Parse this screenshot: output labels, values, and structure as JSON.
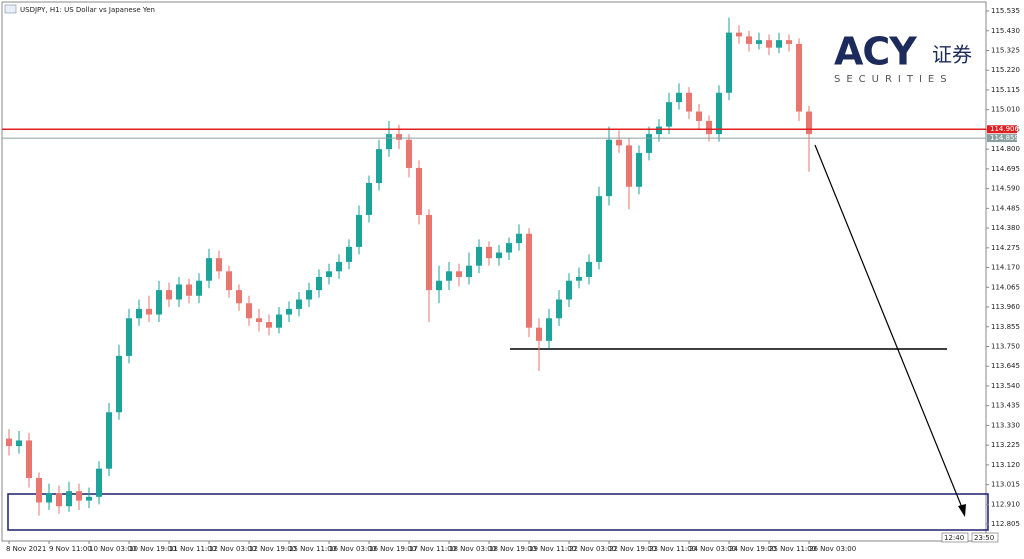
{
  "chart_data": {
    "type": "candlestick",
    "title": "USDJPY, H1: US Dollar vs Japanese Yen",
    "logo": {
      "brand": "ACY",
      "cn": "证券",
      "sub": "SECURITIES"
    },
    "up_color": "#1ba39c",
    "down_color": "#e8766f",
    "categories": [
      "8 Nov 2021",
      null,
      null,
      null,
      "9 Nov 11:00",
      null,
      null,
      null,
      "10 Nov 03:00",
      null,
      null,
      null,
      "10 Nov 19:00",
      null,
      null,
      null,
      "11 Nov 11:00",
      null,
      null,
      null,
      "12 Nov 03:00",
      null,
      null,
      null,
      "12 Nov 19:00",
      null,
      null,
      null,
      "15 Nov 11:00",
      null,
      null,
      null,
      "16 Nov 03:00",
      null,
      null,
      null,
      "16 Nov 19:00",
      null,
      null,
      null,
      "17 Nov 11:00",
      null,
      null,
      null,
      "18 Nov 03:00",
      null,
      null,
      null,
      "18 Nov 19:00",
      null,
      null,
      null,
      "19 Nov 11:00",
      null,
      null,
      null,
      "22 Nov 03:00",
      null,
      null,
      null,
      "22 Nov 19:00",
      null,
      null,
      null,
      "23 Nov 11:00",
      null,
      null,
      null,
      "24 Nov 03:00",
      null,
      null,
      null,
      "24 Nov 19:00",
      null,
      null,
      null,
      "25 Nov 11:00",
      null,
      null,
      null,
      "26 Nov 03:00"
    ],
    "open": [
      113.26,
      113.22,
      113.25,
      113.05,
      112.92,
      112.97,
      112.9,
      112.98,
      112.93,
      112.95,
      113.1,
      113.4,
      113.7,
      113.9,
      113.95,
      113.92,
      114.05,
      114.0,
      114.08,
      114.02,
      114.1,
      114.22,
      114.15,
      114.05,
      113.98,
      113.9,
      113.88,
      113.85,
      113.92,
      113.95,
      114.0,
      114.05,
      114.12,
      114.15,
      114.2,
      114.28,
      114.45,
      114.62,
      114.8,
      114.88,
      114.85,
      114.7,
      114.45,
      114.05,
      114.1,
      114.15,
      114.12,
      114.18,
      114.28,
      114.22,
      114.25,
      114.3,
      114.35,
      113.85,
      113.78,
      113.9,
      114.0,
      114.1,
      114.12,
      114.2,
      114.55,
      114.85,
      114.82,
      114.6,
      114.78,
      114.88,
      114.92,
      115.05,
      115.1,
      115.0,
      114.95,
      114.88,
      115.1,
      115.42,
      115.4,
      115.36,
      115.38,
      115.34,
      115.38,
      115.36,
      115.0
    ],
    "high": [
      113.31,
      113.3,
      113.29,
      113.08,
      113.02,
      113.01,
      113.03,
      113.02,
      113.0,
      113.14,
      113.45,
      113.76,
      113.95,
      114.0,
      114.02,
      114.1,
      114.09,
      114.12,
      114.11,
      114.14,
      114.27,
      114.26,
      114.18,
      114.08,
      114.02,
      113.95,
      113.92,
      113.96,
      113.99,
      114.04,
      114.09,
      114.16,
      114.19,
      114.24,
      114.32,
      114.5,
      114.66,
      114.85,
      114.95,
      114.93,
      114.88,
      114.74,
      114.48,
      114.18,
      114.2,
      114.19,
      114.25,
      114.32,
      114.31,
      114.29,
      114.33,
      114.4,
      114.38,
      113.9,
      113.95,
      114.05,
      114.14,
      114.17,
      114.24,
      114.6,
      114.92,
      114.9,
      114.86,
      114.82,
      114.92,
      114.96,
      115.1,
      115.15,
      115.13,
      115.04,
      114.98,
      115.14,
      115.5,
      115.46,
      115.43,
      115.42,
      115.41,
      115.42,
      115.41,
      115.39,
      115.03
    ],
    "low": [
      113.17,
      113.18,
      113.0,
      112.85,
      112.88,
      112.86,
      112.87,
      112.88,
      112.89,
      112.91,
      113.06,
      113.36,
      113.66,
      113.86,
      113.88,
      113.88,
      113.96,
      113.96,
      113.98,
      113.98,
      114.06,
      114.11,
      114.01,
      113.94,
      113.86,
      113.83,
      113.81,
      113.82,
      113.88,
      113.91,
      113.96,
      114.01,
      114.08,
      114.11,
      114.16,
      114.24,
      114.41,
      114.58,
      114.76,
      114.8,
      114.65,
      114.4,
      113.88,
      113.98,
      114.05,
      114.07,
      114.08,
      114.14,
      114.18,
      114.18,
      114.21,
      114.26,
      113.8,
      113.62,
      113.74,
      113.86,
      113.96,
      114.06,
      114.08,
      114.16,
      114.5,
      114.78,
      114.48,
      114.56,
      114.74,
      114.84,
      114.88,
      115.01,
      114.96,
      114.91,
      114.84,
      114.84,
      115.06,
      115.36,
      115.32,
      115.33,
      115.3,
      115.31,
      115.32,
      114.95,
      114.68
    ],
    "close": [
      113.22,
      113.25,
      113.05,
      112.92,
      112.97,
      112.9,
      112.98,
      112.93,
      112.95,
      113.1,
      113.4,
      113.7,
      113.9,
      113.95,
      113.92,
      114.05,
      114.0,
      114.08,
      114.02,
      114.1,
      114.22,
      114.15,
      114.05,
      113.98,
      113.9,
      113.88,
      113.85,
      113.92,
      113.95,
      114.0,
      114.05,
      114.12,
      114.15,
      114.2,
      114.28,
      114.45,
      114.62,
      114.8,
      114.88,
      114.85,
      114.7,
      114.45,
      114.05,
      114.1,
      114.15,
      114.12,
      114.18,
      114.28,
      114.22,
      114.25,
      114.3,
      114.35,
      113.85,
      113.78,
      113.9,
      114.0,
      114.1,
      114.12,
      114.2,
      114.55,
      114.85,
      114.82,
      114.6,
      114.78,
      114.88,
      114.92,
      115.05,
      115.1,
      115.0,
      114.95,
      114.88,
      115.1,
      115.42,
      115.4,
      115.36,
      115.38,
      115.34,
      115.38,
      115.36,
      115.0,
      114.88
    ],
    "ylim": [
      112.715,
      115.583
    ],
    "yticks": [
      115.535,
      {
        "value": 115.43,
        "label": "115.430"
      },
      115.325,
      {
        "value": 115.22,
        "label": "115.220"
      },
      115.115,
      {
        "value": 115.01,
        "label": "115.010"
      },
      114.905,
      {
        "value": 114.8,
        "label": "114.800"
      },
      114.695,
      {
        "value": 114.59,
        "label": "114.590"
      },
      114.485,
      {
        "value": 114.38,
        "label": "114.380"
      },
      114.275,
      {
        "value": 114.17,
        "label": "114.170"
      },
      114.065,
      {
        "value": 113.96,
        "label": "113.960"
      },
      113.855,
      {
        "value": 113.75,
        "label": "113.750"
      },
      113.645,
      {
        "value": 113.54,
        "label": "113.540"
      },
      113.435,
      {
        "value": 113.33,
        "label": "113.330"
      },
      113.225,
      {
        "value": 113.12,
        "label": "113.120"
      },
      113.015,
      {
        "value": 112.91,
        "label": "112.910"
      },
      112.805
    ],
    "price_lines": [
      {
        "value": 114.906,
        "color": "#e02020"
      },
      {
        "value": 114.859,
        "color": "#8aa0a0"
      }
    ],
    "time_markers": [
      "12:40",
      "23:50"
    ]
  }
}
